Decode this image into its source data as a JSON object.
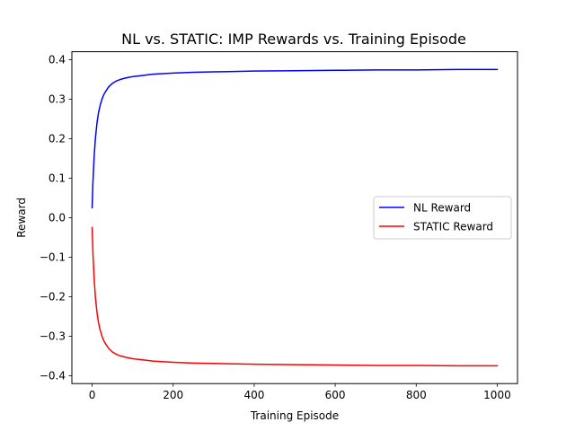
{
  "chart_data": {
    "type": "line",
    "title": "NL vs. STATIC: IMP Rewards vs. Training Episode",
    "xlabel": "Training Episode",
    "ylabel": "Reward",
    "xlim": [
      -50,
      1050
    ],
    "ylim": [
      -0.42,
      0.42
    ],
    "xticks": [
      0,
      200,
      400,
      600,
      800,
      1000
    ],
    "xtick_labels": [
      "0",
      "200",
      "400",
      "600",
      "800",
      "1000"
    ],
    "yticks": [
      0.4,
      0.3,
      0.2,
      0.1,
      0.0,
      -0.1,
      -0.2,
      -0.3,
      -0.4
    ],
    "ytick_labels": [
      "0.4",
      "0.3",
      "0.2",
      "0.1",
      "0.0",
      "−0.1",
      "−0.2",
      "−0.3",
      "−0.4"
    ],
    "grid": false,
    "legend_position": "center-right",
    "series": [
      {
        "name": "NL Reward",
        "color": "#0000ff",
        "x": [
          0,
          2,
          5,
          8,
          12,
          16,
          20,
          25,
          30,
          40,
          50,
          60,
          70,
          85,
          100,
          125,
          150,
          200,
          250,
          300,
          400,
          500,
          600,
          700,
          800,
          900,
          1000
        ],
        "values": [
          0.025,
          0.09,
          0.155,
          0.2,
          0.24,
          0.267,
          0.285,
          0.302,
          0.314,
          0.33,
          0.34,
          0.346,
          0.35,
          0.354,
          0.357,
          0.36,
          0.363,
          0.366,
          0.368,
          0.369,
          0.371,
          0.372,
          0.373,
          0.374,
          0.374,
          0.375,
          0.375
        ]
      },
      {
        "name": "STATIC Reward",
        "color": "#ff0000",
        "x": [
          0,
          2,
          5,
          8,
          12,
          16,
          20,
          25,
          30,
          40,
          50,
          60,
          70,
          85,
          100,
          125,
          150,
          200,
          250,
          300,
          400,
          500,
          600,
          700,
          800,
          900,
          1000
        ],
        "values": [
          -0.025,
          -0.09,
          -0.155,
          -0.2,
          -0.24,
          -0.267,
          -0.285,
          -0.302,
          -0.314,
          -0.33,
          -0.34,
          -0.346,
          -0.35,
          -0.354,
          -0.357,
          -0.36,
          -0.363,
          -0.366,
          -0.368,
          -0.369,
          -0.371,
          -0.372,
          -0.373,
          -0.374,
          -0.374,
          -0.375,
          -0.375
        ]
      }
    ]
  }
}
